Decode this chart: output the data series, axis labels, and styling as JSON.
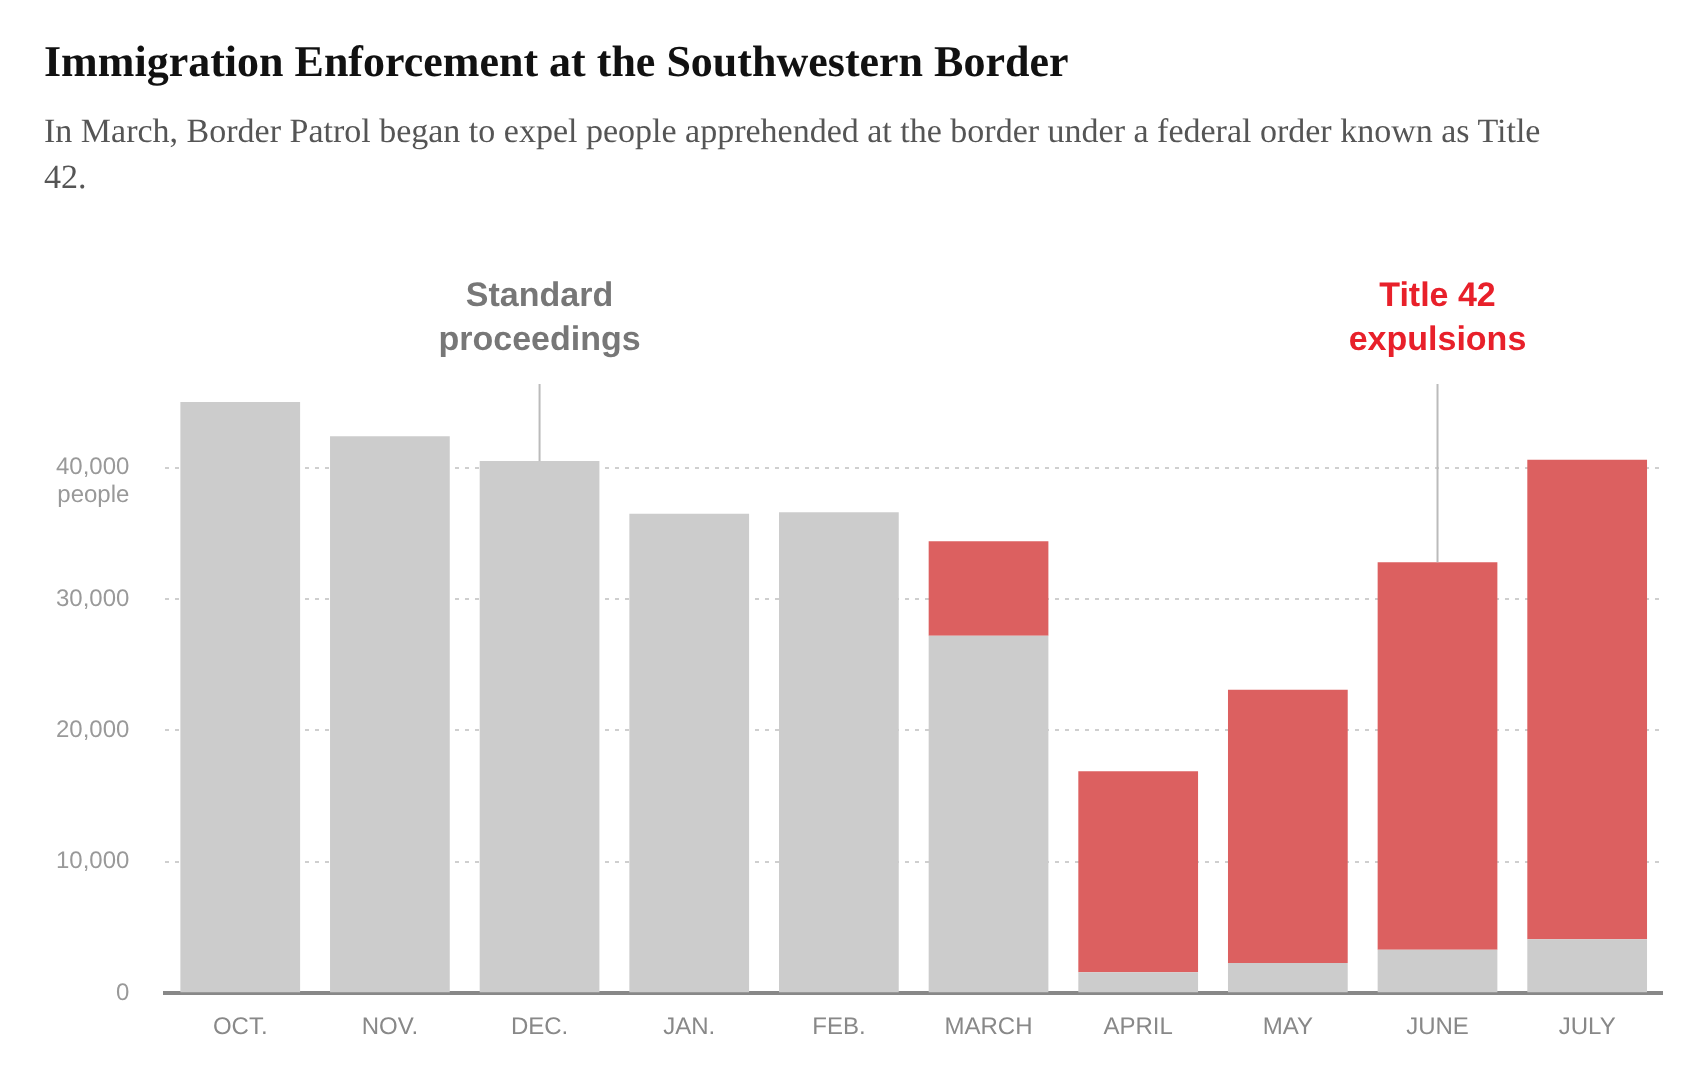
{
  "chart_data": {
    "type": "bar",
    "title": "Immigration Enforcement at the Southwestern Border",
    "subtitle": "In March, Border Patrol began to expel people apprehended at the border under a federal order known as Title 42.",
    "ylabel": "people",
    "categories": [
      "OCT.",
      "NOV.",
      "DEC.",
      "JAN.",
      "FEB.",
      "MARCH",
      "APRIL",
      "MAY",
      "JUNE",
      "JULY"
    ],
    "stacked": true,
    "series": [
      {
        "color": "#cccccc",
        "values": [
          45000,
          42400,
          40500,
          36500,
          36600,
          27200,
          1600,
          2300,
          3300,
          4100
        ]
      },
      {
        "color": "#dc6060",
        "values": [
          0,
          0,
          0,
          0,
          0,
          7200,
          15300,
          20800,
          29500,
          36500
        ]
      }
    ],
    "yticks": [
      {
        "value": 0,
        "label": "0"
      },
      {
        "value": 10000,
        "label": "10,000"
      },
      {
        "value": 20000,
        "label": "20,000"
      },
      {
        "value": 30000,
        "label": "30,000"
      },
      {
        "value": 40000,
        "label": "40,000"
      }
    ],
    "ylim": [
      0,
      45000
    ],
    "grid": "y",
    "legend": false,
    "annotations": [
      {
        "text": "Standard\nproceedings",
        "x": "DEC.",
        "y": 40500
      },
      {
        "text": "Title 42\nexpulsions",
        "x": "JUNE",
        "y": 32800
      }
    ]
  }
}
